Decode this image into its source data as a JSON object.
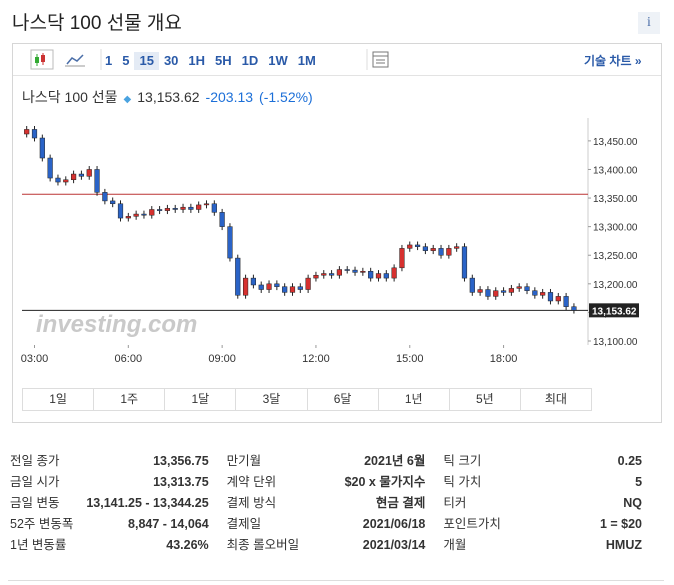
{
  "header": {
    "title": "나스닥 100 선물 개요",
    "info": "i"
  },
  "toolbar": {
    "intervals": [
      "1",
      "5",
      "15",
      "30",
      "1H",
      "5H",
      "1D",
      "1W",
      "1M"
    ],
    "technical": "기술 차트 »"
  },
  "quote": {
    "name": "나스닥 100 선물",
    "price": "13,153.62",
    "change": "-203.13",
    "change_pct": "(-1.52%)"
  },
  "chart_data": {
    "type": "candlestick",
    "x": [
      2.75,
      3,
      3.25,
      3.5,
      3.75,
      4,
      4.25,
      4.5,
      4.75,
      5,
      5.25,
      5.5,
      5.75,
      6,
      6.25,
      6.5,
      6.75,
      7,
      7.25,
      7.5,
      7.75,
      8,
      8.25,
      8.5,
      8.75,
      9,
      9.25,
      9.5,
      9.75,
      10,
      10.25,
      10.5,
      10.75,
      11,
      11.25,
      11.5,
      11.75,
      12,
      12.25,
      12.5,
      12.75,
      13,
      13.25,
      13.5,
      13.75,
      14,
      14.25,
      14.5,
      14.75,
      15,
      15.25,
      15.5,
      15.75,
      16,
      16.25,
      16.5,
      16.75,
      17,
      17.25,
      17.5,
      17.75,
      18,
      18.25,
      18.5,
      18.75,
      19,
      19.25,
      19.5,
      19.75,
      20,
      20.25
    ],
    "open": [
      13462,
      13470,
      13455,
      13420,
      13385,
      13378,
      13382,
      13392,
      13388,
      13400,
      13360,
      13345,
      13340,
      13315,
      13318,
      13322,
      13320,
      13330,
      13328,
      13332,
      13330,
      13334,
      13330,
      13338,
      13340,
      13325,
      13300,
      13245,
      13180,
      13210,
      13198,
      13190,
      13200,
      13195,
      13185,
      13195,
      13190,
      13210,
      13215,
      13218,
      13215,
      13225,
      13224,
      13220,
      13222,
      13210,
      13218,
      13210,
      13228,
      13262,
      13268,
      13265,
      13258,
      13262,
      13250,
      13262,
      13265,
      13210,
      13185,
      13190,
      13178,
      13188,
      13185,
      13192,
      13195,
      13188,
      13180,
      13185,
      13170,
      13178,
      13160
    ],
    "high": [
      13476,
      13476,
      13461,
      13426,
      13391,
      13388,
      13398,
      13398,
      13406,
      13406,
      13366,
      13351,
      13346,
      13324,
      13328,
      13328,
      13336,
      13336,
      13338,
      13338,
      13340,
      13340,
      13344,
      13346,
      13346,
      13331,
      13306,
      13251,
      13216,
      13216,
      13204,
      13206,
      13206,
      13201,
      13201,
      13201,
      13216,
      13221,
      13224,
      13224,
      13231,
      13231,
      13230,
      13228,
      13228,
      13224,
      13224,
      13234,
      13268,
      13274,
      13274,
      13271,
      13268,
      13268,
      13268,
      13271,
      13271,
      13216,
      13196,
      13196,
      13194,
      13194,
      13198,
      13201,
      13201,
      13194,
      13191,
      13191,
      13184,
      13184,
      13166
    ],
    "low": [
      13456,
      13449,
      13414,
      13379,
      13372,
      13372,
      13376,
      13382,
      13382,
      13354,
      13339,
      13334,
      13309,
      13309,
      13312,
      13314,
      13314,
      13322,
      13322,
      13324,
      13324,
      13324,
      13324,
      13332,
      13319,
      13294,
      13239,
      13174,
      13174,
      13192,
      13184,
      13184,
      13189,
      13179,
      13179,
      13184,
      13184,
      13204,
      13209,
      13209,
      13209,
      13218,
      13214,
      13214,
      13204,
      13204,
      13204,
      13204,
      13222,
      13256,
      13259,
      13252,
      13252,
      13244,
      13244,
      13256,
      13204,
      13179,
      13179,
      13172,
      13172,
      13179,
      13179,
      13186,
      13182,
      13174,
      13174,
      13164,
      13164,
      13154,
      13148
    ],
    "close": [
      13470,
      13455,
      13420,
      13385,
      13378,
      13382,
      13392,
      13388,
      13400,
      13360,
      13345,
      13340,
      13315,
      13318,
      13322,
      13320,
      13330,
      13328,
      13332,
      13330,
      13334,
      13330,
      13338,
      13340,
      13325,
      13300,
      13245,
      13180,
      13210,
      13198,
      13190,
      13200,
      13195,
      13185,
      13195,
      13190,
      13210,
      13215,
      13218,
      13215,
      13225,
      13224,
      13220,
      13222,
      13210,
      13218,
      13210,
      13228,
      13262,
      13268,
      13265,
      13258,
      13262,
      13250,
      13262,
      13265,
      13210,
      13185,
      13190,
      13178,
      13188,
      13185,
      13192,
      13195,
      13188,
      13180,
      13185,
      13170,
      13178,
      13160,
      13153.62
    ],
    "up_color": "#d6312f",
    "down_color": "#2a63c7",
    "xlim": [
      2.6,
      20.7
    ],
    "ylim": [
      13093,
      13490
    ],
    "xticks": [
      {
        "value": 3,
        "label": "03:00"
      },
      {
        "value": 6,
        "label": "06:00"
      },
      {
        "value": 9,
        "label": "09:00"
      },
      {
        "value": 12,
        "label": "12:00"
      },
      {
        "value": 15,
        "label": "15:00"
      },
      {
        "value": 18,
        "label": "18:00"
      }
    ],
    "yticks": [
      {
        "value": 13100,
        "label": "13,100.00"
      },
      {
        "value": 13150,
        "label": "13,150.00"
      },
      {
        "value": 13200,
        "label": "13,200.00"
      },
      {
        "value": 13250,
        "label": "13,250.00"
      },
      {
        "value": 13300,
        "label": "13,300.00"
      },
      {
        "value": 13350,
        "label": "13,350.00"
      },
      {
        "value": 13400,
        "label": "13,400.00"
      },
      {
        "value": 13450,
        "label": "13,450.00"
      }
    ],
    "reference_value": 13356.75,
    "last_price": {
      "value": 13153.62,
      "label": "13,153.62"
    },
    "watermark": "investing.com"
  },
  "ranges": [
    "1일",
    "1주",
    "1달",
    "3달",
    "6달",
    "1년",
    "5년",
    "최대"
  ],
  "stats": [
    [
      {
        "label": "전일 종가",
        "value": "13,356.75"
      },
      {
        "label": "금일 시가",
        "value": "13,313.75"
      },
      {
        "label": "금일 변동",
        "value": "13,141.25 - 13,344.25"
      },
      {
        "label": "52주 변동폭",
        "value": "8,847 - 14,064"
      },
      {
        "label": "1년 변동률",
        "value": "43.26%"
      }
    ],
    [
      {
        "label": "만기월",
        "value": "2021년 6월"
      },
      {
        "label": "계약 단위",
        "value": "$20 x 물가지수"
      },
      {
        "label": "결제 방식",
        "value": "현금 결제"
      },
      {
        "label": "결제일",
        "value": "2021/06/18"
      },
      {
        "label": "최종 롤오버일",
        "value": "2021/03/14"
      }
    ],
    [
      {
        "label": "틱 크기",
        "value": "0.25"
      },
      {
        "label": "틱 가치",
        "value": "5"
      },
      {
        "label": "티커",
        "value": "NQ"
      },
      {
        "label": "포인트가치",
        "value": "1 = $20"
      },
      {
        "label": "개월",
        "value": "HMUZ"
      }
    ]
  ]
}
